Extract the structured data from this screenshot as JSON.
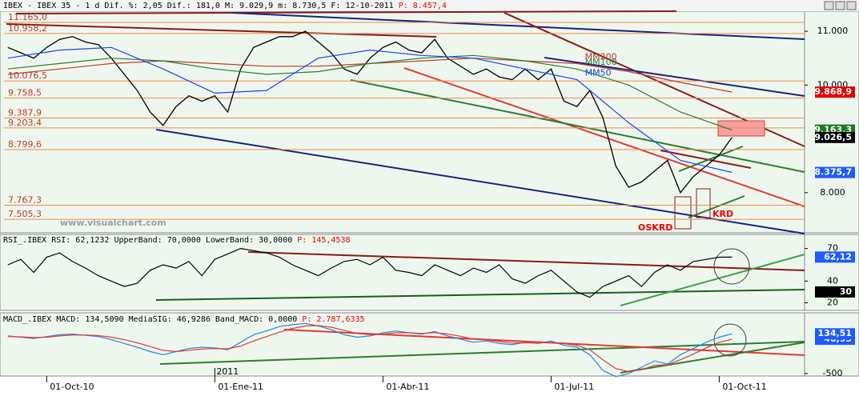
{
  "chart_data": [
    {
      "type": "line",
      "title": "IBEX - IBEX 35 - 1 d Dif. %: 2,05 Dif.: 181,0 M: 9.029,9 m: 8.730,5 F: 12-10-2011",
      "title_p": "P: 8.457,4",
      "x": [
        -3,
        -2,
        -1,
        0,
        1,
        2,
        3,
        4,
        5,
        6,
        7,
        8,
        9,
        10,
        11,
        12,
        13,
        14,
        15,
        16,
        17,
        18,
        19,
        20,
        21,
        22,
        23,
        24,
        25,
        26,
        27,
        28,
        29,
        30,
        31,
        32,
        33,
        34,
        35,
        36,
        37,
        38,
        39,
        40,
        41,
        42,
        43,
        44,
        45,
        46,
        47,
        48,
        49,
        50,
        51,
        52,
        53
      ],
      "xlim": [
        -3.3,
        58.6
      ],
      "xticks": [
        {
          "value": 0,
          "label": "01-Oct-10"
        },
        {
          "value": 13,
          "label": "01-Ene-11"
        },
        {
          "value": 26,
          "label": "01-Abr-11"
        },
        {
          "value": 39,
          "label": "01-Jul-11"
        },
        {
          "value": 52,
          "label": "01-Oct-11"
        }
      ],
      "year_label": {
        "value": 13,
        "label": "2011"
      },
      "ylim": [
        7254,
        11373
      ],
      "yticks": [
        {
          "value": 11000,
          "label": "11.000"
        },
        {
          "value": 10000,
          "label": "10.000"
        },
        {
          "value": 8000,
          "label": "8.000"
        }
      ],
      "series": [
        {
          "color": "#000000",
          "values": [
            10700,
            10600,
            10500,
            10700,
            10850,
            10900,
            10800,
            10750,
            10500,
            10200,
            9900,
            9500,
            9250,
            9600,
            9800,
            9700,
            9800,
            9500,
            10300,
            10700,
            10800,
            10900,
            10900,
            11000,
            10800,
            10600,
            10300,
            10200,
            10500,
            10700,
            10800,
            10650,
            10600,
            10850,
            10500,
            10350,
            10200,
            10300,
            10150,
            10100,
            10300,
            10100,
            10300,
            9700,
            9600,
            9900,
            9400,
            8500,
            8100,
            8200,
            8400,
            8600,
            8000,
            8300,
            8500,
            8700,
            9026.5
          ]
        },
        {
          "name": "MM200",
          "color": "#c0392b",
          "x": [
            -3,
            1,
            5,
            9,
            13,
            17,
            21,
            25,
            29,
            33,
            37,
            41,
            45,
            49,
            53
          ],
          "values": [
            10200,
            10300,
            10400,
            10450,
            10400,
            10350,
            10350,
            10400,
            10450,
            10500,
            10450,
            10400,
            10250,
            10050,
            9869
          ]
        },
        {
          "name": "MM100",
          "color": "#2e7d32",
          "x": [
            -3,
            1,
            5,
            9,
            13,
            17,
            21,
            25,
            29,
            33,
            37,
            41,
            45,
            49,
            53
          ],
          "values": [
            10300,
            10400,
            10500,
            10450,
            10300,
            10200,
            10250,
            10400,
            10500,
            10550,
            10450,
            10300,
            10000,
            9500,
            9163
          ]
        },
        {
          "name": "MM50",
          "color": "#1e40ff",
          "x": [
            -3,
            1,
            5,
            9,
            13,
            17,
            21,
            25,
            29,
            33,
            37,
            41,
            45,
            49,
            53
          ],
          "values": [
            10500,
            10650,
            10700,
            10300,
            9850,
            9900,
            10500,
            10650,
            10550,
            10500,
            10300,
            10100,
            9300,
            8600,
            8376
          ]
        }
      ],
      "levels": [
        {
          "value": 11165,
          "label": "11.165,0"
        },
        {
          "value": 10958.2,
          "label": "10.958,2"
        },
        {
          "value": 10076.5,
          "label": "10.076,5"
        },
        {
          "value": 9758.5,
          "label": "9.758,5"
        },
        {
          "value": 9387.9,
          "label": "9.387,9"
        },
        {
          "value": 9203.4,
          "label": "9.203,4"
        },
        {
          "value": 8799.6,
          "label": "8.799,6"
        },
        {
          "value": 7767.3,
          "label": "7.767,3"
        },
        {
          "value": 7505.3,
          "label": "7.505,3"
        }
      ],
      "tags": [
        {
          "value": 9868.9,
          "label": "9.868,9",
          "color": "#e60000"
        },
        {
          "value": 9163.3,
          "label": "9.163,3",
          "color": "#1b7a1b"
        },
        {
          "value": 9026.5,
          "label": "9.026,5",
          "color": "#000000"
        },
        {
          "value": 8375.7,
          "label": "8.375,7",
          "color": "#1e5aff"
        }
      ],
      "annotations": [
        "KRD",
        "OSKRD",
        "www.visualchart.com"
      ]
    },
    {
      "type": "line",
      "title": "RSI_.IBEX RSI: 62,1232 UpperBand: 70,0000 LowerBand: 30,0000",
      "title_p": "P: 145,4538",
      "x": [
        -3,
        -2,
        -1,
        0,
        1,
        2,
        3,
        4,
        5,
        6,
        7,
        8,
        9,
        10,
        11,
        12,
        13,
        14,
        15,
        16,
        17,
        18,
        19,
        20,
        21,
        22,
        23,
        24,
        25,
        26,
        27,
        28,
        29,
        30,
        31,
        32,
        33,
        34,
        35,
        36,
        37,
        38,
        39,
        40,
        41,
        42,
        43,
        44,
        45,
        46,
        47,
        48,
        49,
        50,
        51,
        52,
        53
      ],
      "ylim": [
        13,
        83
      ],
      "yticks": [
        20,
        40,
        70
      ],
      "series": [
        {
          "color": "#000000",
          "values": [
            55,
            60,
            48,
            62,
            66,
            58,
            52,
            45,
            40,
            35,
            38,
            50,
            55,
            52,
            58,
            45,
            60,
            65,
            70,
            68,
            66,
            62,
            55,
            50,
            45,
            52,
            58,
            60,
            55,
            62,
            50,
            48,
            45,
            55,
            50,
            45,
            52,
            48,
            55,
            42,
            38,
            45,
            50,
            40,
            30,
            25,
            35,
            40,
            45,
            35,
            48,
            55,
            50,
            58,
            60,
            62,
            62.1
          ]
        }
      ],
      "tags": [
        {
          "value": 62.12,
          "label": "62,12",
          "color": "#1e5aff"
        },
        {
          "value": 30,
          "label": "30",
          "color": "#000000"
        }
      ]
    },
    {
      "type": "line",
      "title": "MACD_.IBEX MACD: 134,5090 MediaSIG: 46,9286 Band_MACD: 0,0000",
      "title_p": "P: 2.787,6335",
      "x": [
        -3,
        -2,
        -1,
        0,
        1,
        2,
        3,
        4,
        5,
        6,
        7,
        8,
        9,
        10,
        11,
        12,
        13,
        14,
        15,
        16,
        17,
        18,
        19,
        20,
        21,
        22,
        23,
        24,
        25,
        26,
        27,
        28,
        29,
        30,
        31,
        32,
        33,
        34,
        35,
        36,
        37,
        38,
        39,
        40,
        41,
        42,
        43,
        44,
        45,
        46,
        47,
        48,
        49,
        50,
        51,
        52,
        53
      ],
      "ylim": [
        -540,
        470
      ],
      "yticks": [
        -500
      ],
      "series": [
        {
          "color": "#1e88e5",
          "values": [
            100,
            80,
            60,
            90,
            120,
            130,
            110,
            90,
            40,
            -20,
            -80,
            -150,
            -200,
            -150,
            -100,
            -80,
            -90,
            -120,
            0,
            120,
            180,
            250,
            280,
            300,
            260,
            200,
            120,
            80,
            100,
            150,
            180,
            150,
            130,
            170,
            100,
            50,
            0,
            20,
            -20,
            -40,
            0,
            -20,
            20,
            -50,
            -80,
            -200,
            -450,
            -550,
            -500,
            -400,
            -300,
            -350,
            -200,
            -100,
            0,
            80,
            134.5
          ]
        },
        {
          "color": "#e53935",
          "values": [
            90,
            85,
            75,
            80,
            100,
            115,
            115,
            105,
            80,
            40,
            -10,
            -70,
            -130,
            -150,
            -130,
            -110,
            -100,
            -105,
            -60,
            20,
            90,
            160,
            220,
            260,
            265,
            240,
            190,
            140,
            120,
            130,
            150,
            150,
            140,
            155,
            130,
            95,
            50,
            35,
            10,
            -15,
            -10,
            -15,
            0,
            -25,
            -50,
            -120,
            -280,
            -420,
            -470,
            -440,
            -370,
            -360,
            -280,
            -190,
            -90,
            0,
            46.9
          ]
        }
      ],
      "tags": [
        {
          "value": 46.93,
          "label": "46,93",
          "color": "#1e5aff"
        },
        {
          "value": 134.51,
          "label": "134,51",
          "color": "#1e5aff"
        }
      ]
    }
  ]
}
